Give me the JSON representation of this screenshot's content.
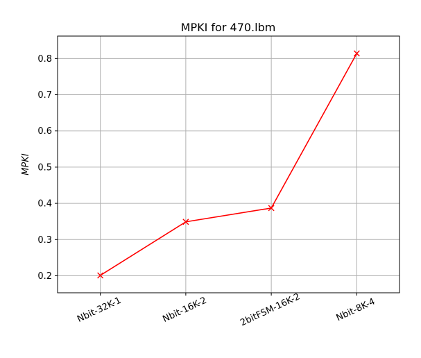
{
  "chart_data": {
    "type": "line",
    "title": "MPKI for 470.lbm",
    "xlabel": "",
    "ylabel": "MPKI",
    "categories": [
      "Nbit-32K-1",
      "Nbit-16K-2",
      "2bitFSM-16K-2",
      "Nbit-8K-4"
    ],
    "series": [
      {
        "values": [
          0.201,
          0.349,
          0.387,
          0.814
        ],
        "color": "#ff0000",
        "marker": "x"
      }
    ],
    "ylim": [
      0.153,
      0.862
    ],
    "yticks": [
      "0.2",
      "0.3",
      "0.4",
      "0.5",
      "0.6",
      "0.7",
      "0.8"
    ],
    "grid": true,
    "x_tick_rotation_deg": 25
  }
}
